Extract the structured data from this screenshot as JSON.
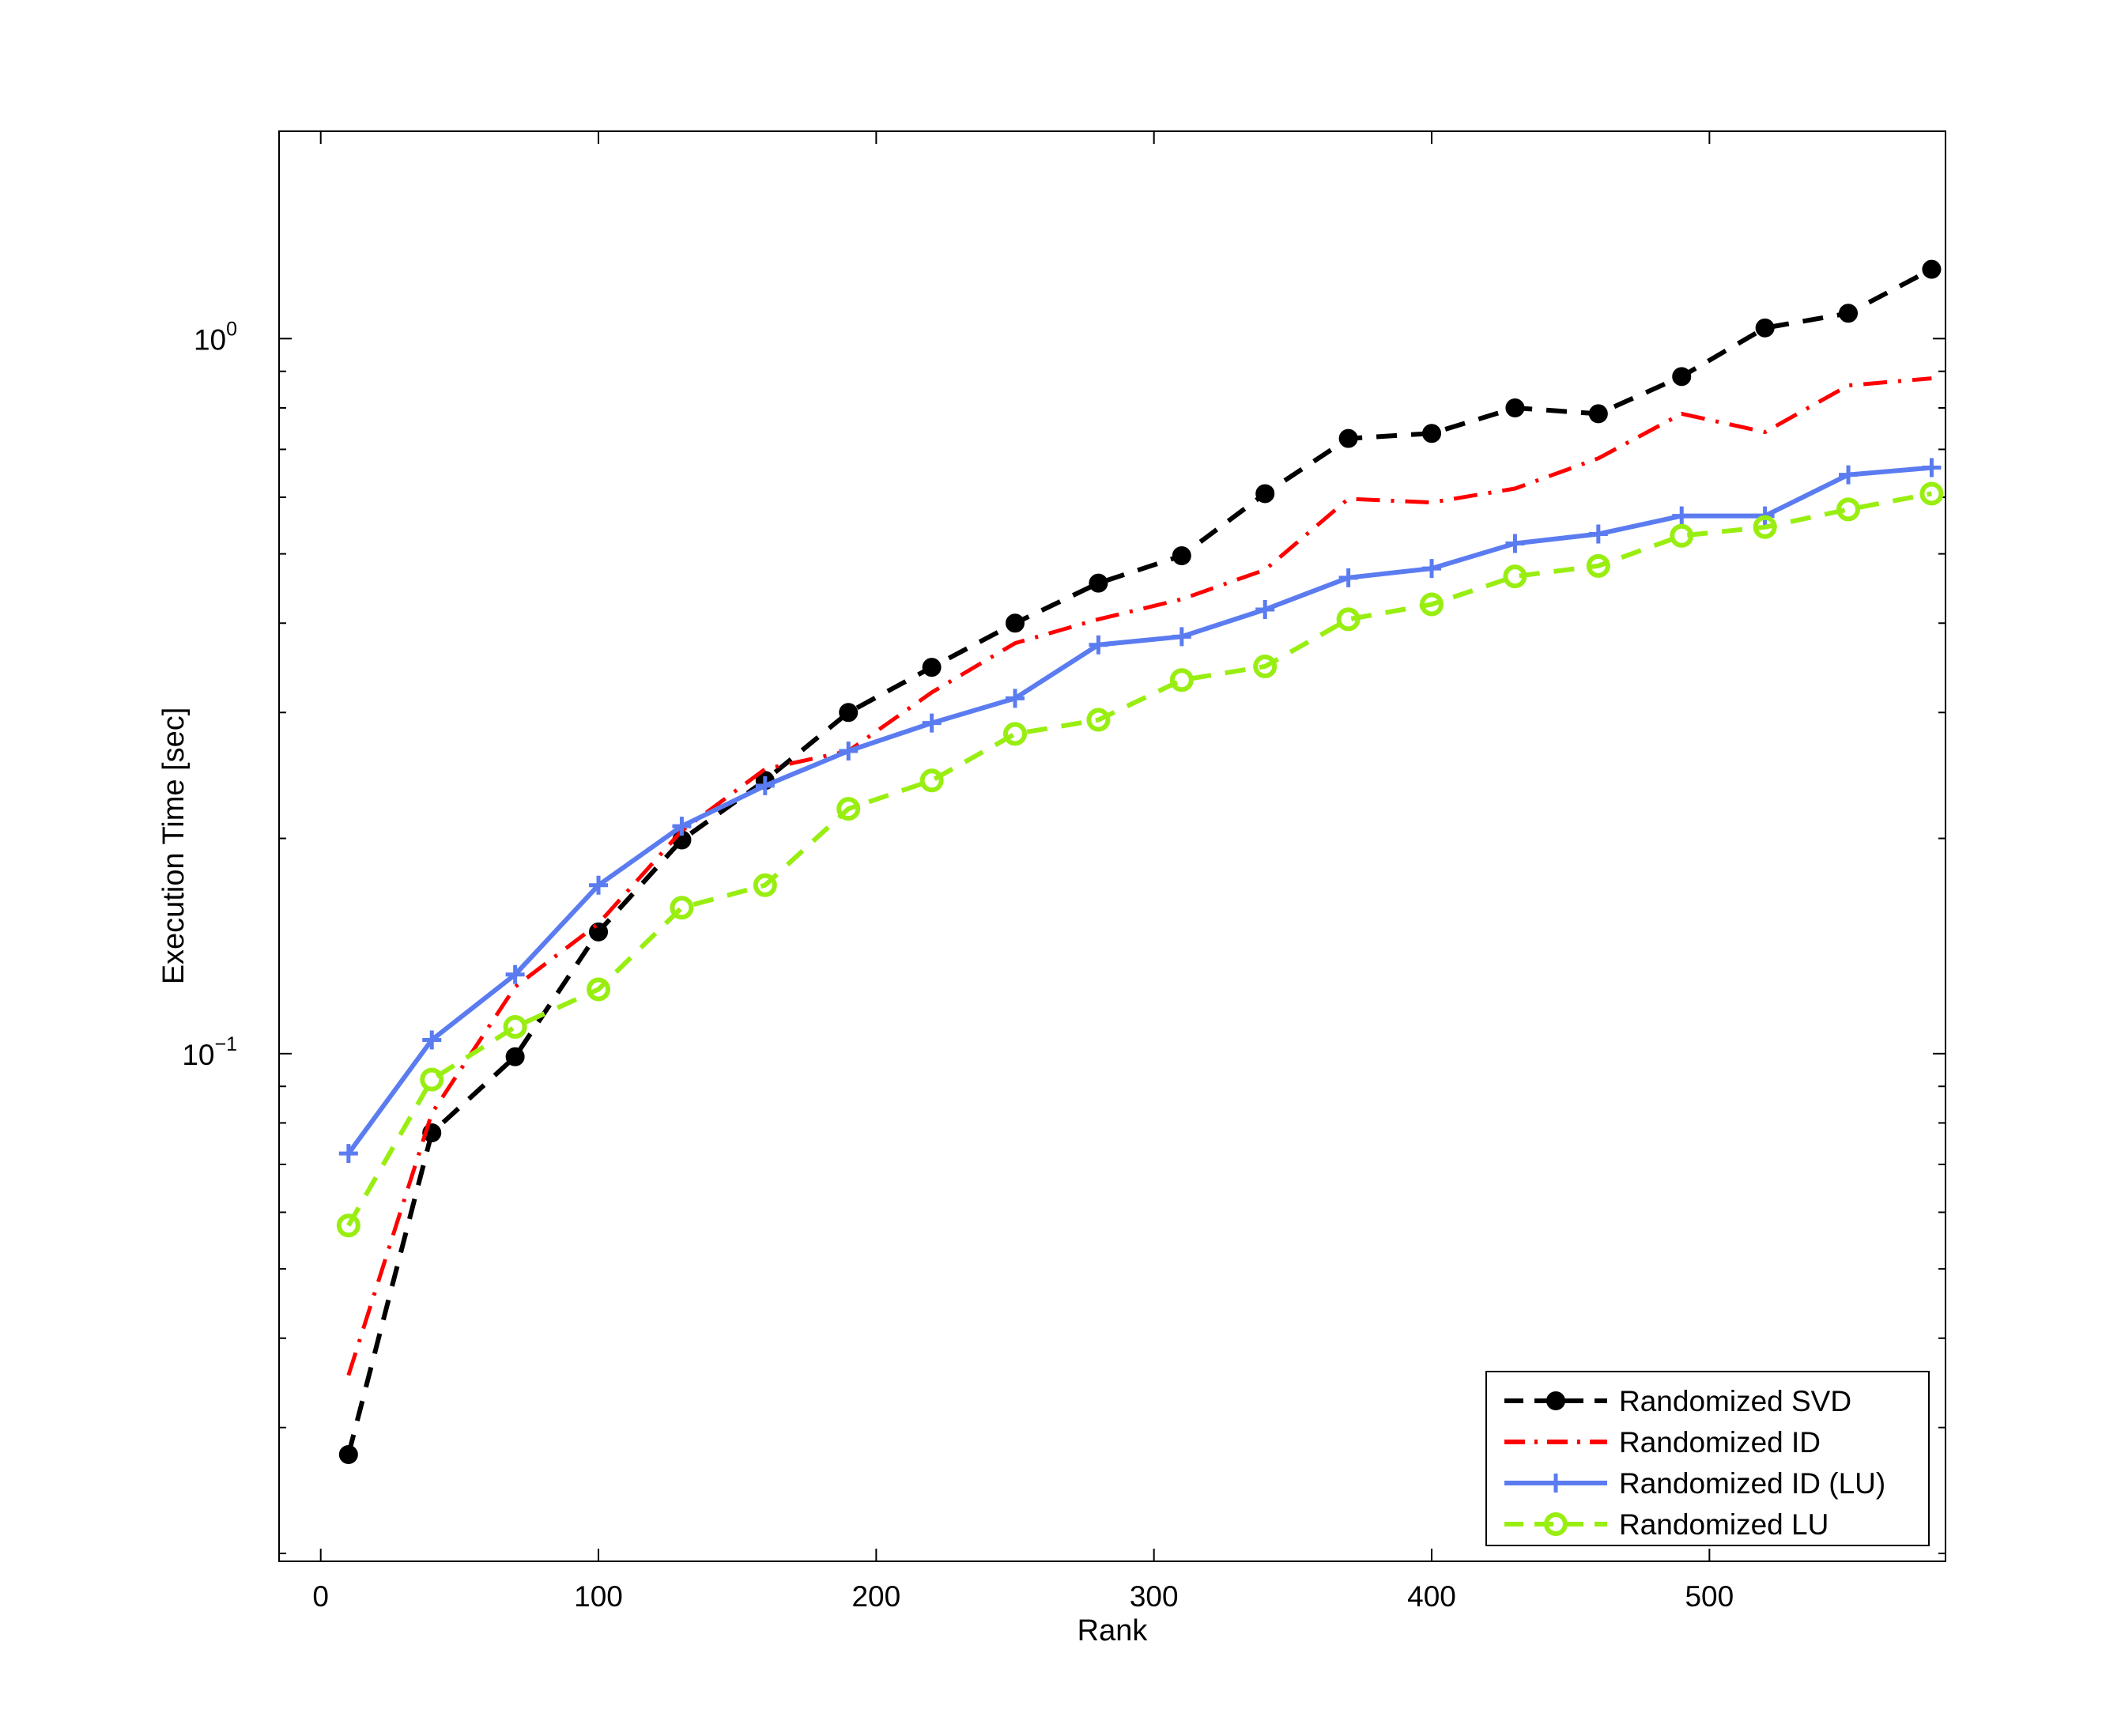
{
  "chart_data": {
    "type": "line",
    "title": "",
    "xlabel": "Rank",
    "ylabel": "Execution Time [sec]",
    "xlim": [
      -15,
      585
    ],
    "ylim": [
      0.0195,
      1.95
    ],
    "yscale": "log",
    "grid": false,
    "legend_position": "bottom-right",
    "xticks": [
      0,
      100,
      200,
      300,
      400,
      500
    ],
    "yticks": [
      {
        "value": 0.1,
        "base": "10",
        "exp": "−1"
      },
      {
        "value": 1,
        "base": "10",
        "exp": "0"
      }
    ],
    "x": [
      10,
      40,
      70,
      100,
      130,
      160,
      190,
      220,
      250,
      280,
      310,
      340,
      370,
      400,
      430,
      460,
      490,
      520,
      550,
      580
    ],
    "series": [
      {
        "name": "Randomized SVD",
        "color": "#000000",
        "dash": "dashed",
        "marker": "filled-circle",
        "values": [
          0.0275,
          0.0775,
          0.099,
          0.148,
          0.199,
          0.241,
          0.3,
          0.347,
          0.4,
          0.455,
          0.497,
          0.607,
          0.725,
          0.737,
          0.8,
          0.785,
          0.885,
          1.035,
          1.085,
          1.25
        ]
      },
      {
        "name": "Randomized ID",
        "color": "#ff0000",
        "dash": "dash-dot",
        "marker": "none",
        "values": [
          0.0355,
          0.0825,
          0.124,
          0.152,
          0.205,
          0.25,
          0.265,
          0.32,
          0.375,
          0.405,
          0.432,
          0.475,
          0.597,
          0.59,
          0.617,
          0.68,
          0.785,
          0.74,
          0.86,
          0.88
        ]
      },
      {
        "name": "Randomized ID (LU)",
        "color": "#5b7cf0",
        "dash": "solid",
        "marker": "plus",
        "values": [
          0.0725,
          0.1045,
          0.129,
          0.172,
          0.208,
          0.237,
          0.265,
          0.29,
          0.314,
          0.373,
          0.383,
          0.418,
          0.463,
          0.477,
          0.517,
          0.533,
          0.565,
          0.565,
          0.645,
          0.66
        ]
      },
      {
        "name": "Randomized LU",
        "color": "#99ee11",
        "dash": "dashed",
        "marker": "open-circle",
        "values": [
          0.0575,
          0.092,
          0.109,
          0.123,
          0.16,
          0.172,
          0.22,
          0.241,
          0.28,
          0.293,
          0.333,
          0.348,
          0.405,
          0.425,
          0.465,
          0.481,
          0.53,
          0.545,
          0.577,
          0.607
        ]
      }
    ]
  }
}
